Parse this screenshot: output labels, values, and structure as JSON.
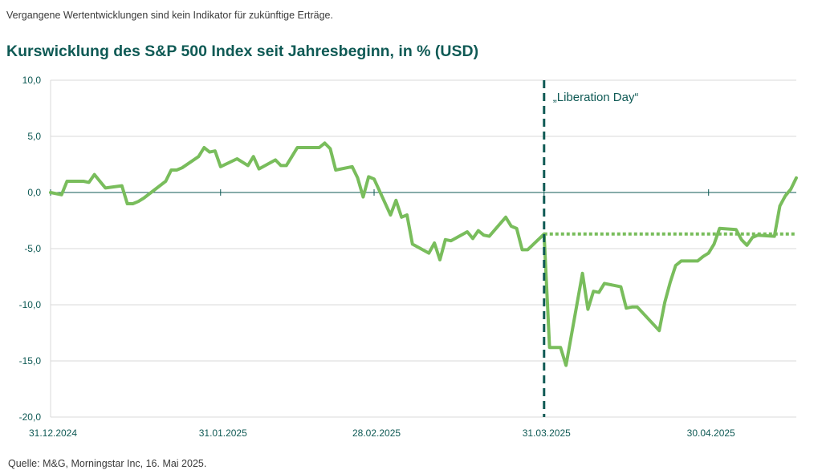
{
  "disclaimer": "Vergangene Wertentwicklungen sind kein Indikator für zukünftige Erträge.",
  "source": "Quelle: M&G, Morningstar Inc, 16. Mai 2025.",
  "colors": {
    "line": "#79bd5c",
    "accent": "#0f5a55",
    "grid": "#d9d9d9"
  },
  "chart_data": {
    "type": "line",
    "title": "Kurswicklung des S&P 500 Index seit Jahresbeginn, in % (USD)",
    "xlabel": "",
    "ylabel": "",
    "ylim": [
      -20,
      10
    ],
    "yticks": [
      10,
      5,
      0,
      -5,
      -10,
      -15,
      -20
    ],
    "ytick_labels": [
      "10,0",
      "5,0",
      "0,0",
      "-5,0",
      "-10,0",
      "-15,0",
      "-20,0"
    ],
    "x_range": [
      "2024-12-31",
      "2025-05-16"
    ],
    "xticks": [
      "2024-12-31",
      "2025-01-31",
      "2025-02-28",
      "2025-03-31",
      "2025-04-30"
    ],
    "xtick_labels": [
      "31.12.2024",
      "31.01.2025",
      "28.02.2025",
      "31.03.2025",
      "30.04.2025"
    ],
    "grid": true,
    "series": [
      {
        "x": [
          "2024-12-31",
          "2025-01-02",
          "2025-01-03",
          "2025-01-06",
          "2025-01-07",
          "2025-01-08",
          "2025-01-10",
          "2025-01-13",
          "2025-01-14",
          "2025-01-15",
          "2025-01-16",
          "2025-01-17",
          "2025-01-21",
          "2025-01-22",
          "2025-01-23",
          "2025-01-24",
          "2025-01-27",
          "2025-01-28",
          "2025-01-29",
          "2025-01-30",
          "2025-01-31",
          "2025-02-03",
          "2025-02-04",
          "2025-02-05",
          "2025-02-06",
          "2025-02-07",
          "2025-02-10",
          "2025-02-11",
          "2025-02-12",
          "2025-02-13",
          "2025-02-14",
          "2025-02-18",
          "2025-02-19",
          "2025-02-20",
          "2025-02-21",
          "2025-02-24",
          "2025-02-25",
          "2025-02-26",
          "2025-02-27",
          "2025-02-28",
          "2025-03-03",
          "2025-03-04",
          "2025-03-05",
          "2025-03-06",
          "2025-03-07",
          "2025-03-10",
          "2025-03-11",
          "2025-03-12",
          "2025-03-13",
          "2025-03-14",
          "2025-03-17",
          "2025-03-18",
          "2025-03-19",
          "2025-03-20",
          "2025-03-21",
          "2025-03-24",
          "2025-03-25",
          "2025-03-26",
          "2025-03-27",
          "2025-03-28",
          "2025-03-31",
          "2025-04-01",
          "2025-04-02",
          "2025-04-03",
          "2025-04-04",
          "2025-04-07",
          "2025-04-08",
          "2025-04-09",
          "2025-04-10",
          "2025-04-11",
          "2025-04-14",
          "2025-04-15",
          "2025-04-16",
          "2025-04-17",
          "2025-04-21",
          "2025-04-22",
          "2025-04-23",
          "2025-04-24",
          "2025-04-25",
          "2025-04-28",
          "2025-04-29",
          "2025-04-30",
          "2025-05-01",
          "2025-05-02",
          "2025-05-05",
          "2025-05-06",
          "2025-05-07",
          "2025-05-08",
          "2025-05-09",
          "2025-05-12",
          "2025-05-13",
          "2025-05-14",
          "2025-05-15",
          "2025-05-16"
        ],
        "y": [
          0,
          -0.2,
          1.0,
          1.0,
          0.9,
          1.6,
          0.4,
          0.6,
          -1.0,
          -1.0,
          -0.8,
          -0.5,
          1.0,
          2.0,
          2.0,
          2.2,
          3.2,
          4.0,
          3.6,
          3.7,
          2.3,
          3.0,
          2.7,
          2.4,
          3.2,
          2.1,
          2.9,
          2.4,
          2.4,
          3.2,
          4.0,
          4.0,
          4.4,
          3.9,
          2.0,
          2.3,
          1.3,
          -0.4,
          1.4,
          1.2,
          -2.0,
          -0.7,
          -2.2,
          -2.0,
          -4.6,
          -5.4,
          -4.5,
          -6.0,
          -4.2,
          -4.3,
          -3.5,
          -4.1,
          -3.4,
          -3.8,
          -3.9,
          -2.2,
          -3.0,
          -3.2,
          -5.1,
          -5.1,
          -3.7,
          -13.8,
          -13.8,
          -13.8,
          -15.4,
          -7.2,
          -10.4,
          -8.8,
          -8.9,
          -8.1,
          -8.4,
          -10.3,
          -10.2,
          -10.2,
          -12.3,
          -9.8,
          -8.0,
          -6.5,
          -6.1,
          -6.1,
          -5.7,
          -5.4,
          -4.6,
          -3.2,
          -3.3,
          -4.2,
          -4.7,
          -4.0,
          -3.8,
          -3.9,
          -1.2,
          -0.3,
          0.3,
          1.3
        ]
      }
    ],
    "reference_line": {
      "y": -3.7,
      "style": "dotted",
      "from": "2025-03-31",
      "to": "2025-05-16"
    },
    "annotation": {
      "x": "2025-03-31",
      "label": "„Liberation Day“",
      "style": "dashed vertical"
    }
  }
}
